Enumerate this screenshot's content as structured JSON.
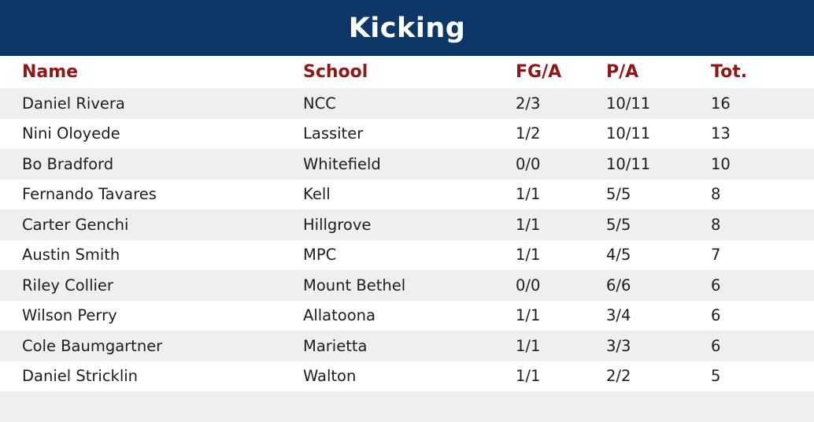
{
  "title": "Kicking",
  "colors": {
    "header_bg": "#0d3766",
    "header_text": "#ffffff",
    "column_header_text": "#911616",
    "row_alt_bg": "#efefef",
    "row_bg": "#ffffff",
    "body_text": "#1d1d1d"
  },
  "chart_data": {
    "type": "table",
    "title": "Kicking",
    "columns": [
      "Name",
      "School",
      "FG/A",
      "P/A",
      "Tot."
    ],
    "rows": [
      [
        "Daniel Rivera",
        "NCC",
        "2/3",
        "10/11",
        "16"
      ],
      [
        "Nini Oloyede",
        "Lassiter",
        "1/2",
        "10/11",
        "13"
      ],
      [
        "Bo Bradford",
        "Whitefield",
        "0/0",
        "10/11",
        "10"
      ],
      [
        "Fernando Tavares",
        "Kell",
        "1/1",
        "5/5",
        "8"
      ],
      [
        "Carter Genchi",
        "Hillgrove",
        "1/1",
        "5/5",
        "8"
      ],
      [
        "Austin Smith",
        "MPC",
        "1/1",
        "4/5",
        "7"
      ],
      [
        "Riley Collier",
        "Mount Bethel",
        "0/0",
        "6/6",
        "6"
      ],
      [
        "Wilson Perry",
        "Allatoona",
        "1/1",
        "3/4",
        "6"
      ],
      [
        "Cole Baumgartner",
        "Marietta",
        "1/1",
        "3/3",
        "6"
      ],
      [
        "Daniel Stricklin",
        "Walton",
        "1/1",
        "2/2",
        "5"
      ]
    ]
  }
}
